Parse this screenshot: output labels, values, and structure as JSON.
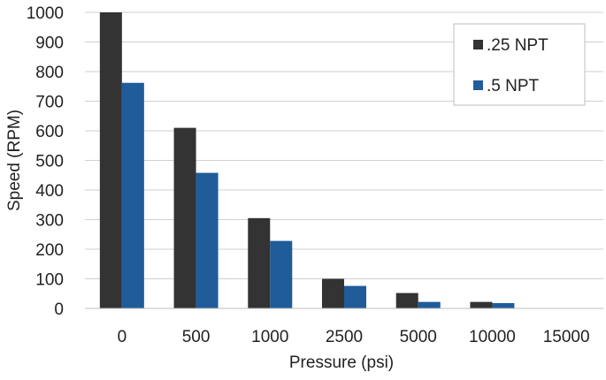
{
  "chart_data": {
    "type": "bar",
    "title": "",
    "xlabel": "Pressure (psi)",
    "ylabel": "Speed (RPM)",
    "categories": [
      "0",
      "500",
      "1000",
      "2500",
      "5000",
      "10000",
      "15000"
    ],
    "series": [
      {
        "name": ".25 NPT",
        "color": "#333333",
        "values": [
          1000,
          610,
          305,
          100,
          52,
          22,
          0
        ]
      },
      {
        "name": ".5 NPT",
        "color": "#1f5c99",
        "values": [
          762,
          458,
          228,
          76,
          22,
          18,
          0
        ]
      }
    ],
    "ylim": [
      0,
      1000
    ],
    "yticks": [
      0,
      100,
      200,
      300,
      400,
      500,
      600,
      700,
      800,
      900,
      1000
    ],
    "grid": true,
    "legend_position": "top-right"
  }
}
